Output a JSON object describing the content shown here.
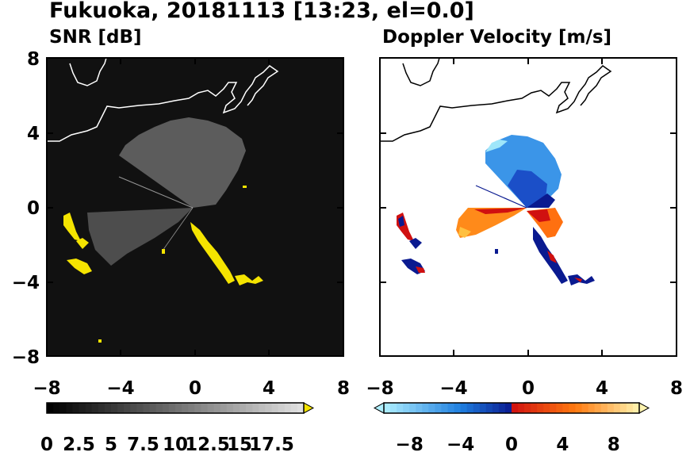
{
  "figure": {
    "title": "Fukuoka, 20181113 [13:23, el=0.0]"
  },
  "chart_data": [
    {
      "type": "heatmap",
      "title": "SNR [dB]",
      "xlim": [
        -8,
        8
      ],
      "ylim": [
        -8,
        8
      ],
      "xticks": [
        "−8",
        "−4",
        "0",
        "4",
        "8"
      ],
      "yticks": [
        "8",
        "4",
        "0",
        "−4",
        "−8"
      ],
      "colorbar": {
        "ticks": [
          "0",
          "2.5",
          "5",
          "7.5",
          "10",
          "12.5",
          "15",
          "17.5"
        ],
        "range": [
          0,
          20
        ],
        "extend": "max",
        "colors": {
          "low": "#000000",
          "high": "#e0e0e0",
          "over": "#f5e400"
        }
      },
      "background": "#101010",
      "grid": false
    },
    {
      "type": "heatmap",
      "title": "Doppler Velocity [m/s]",
      "xlim": [
        -8,
        8
      ],
      "ylim": [
        -8,
        8
      ],
      "xticks": [
        "−8",
        "−4",
        "0",
        "4",
        "8"
      ],
      "yticks": [],
      "colorbar": {
        "ticks": [
          "−8",
          "−4",
          "0",
          "4",
          "8"
        ],
        "range": [
          -10,
          10
        ],
        "extend": "both",
        "colors": {
          "neg_far": "#b0f0ff",
          "neg_mid": "#1f7fe0",
          "neg_near": "#0a1a90",
          "pos_near": "#d01010",
          "pos_mid": "#ff7a10",
          "pos_far": "#fff4b0"
        }
      },
      "background": "#ffffff",
      "grid": false
    }
  ]
}
